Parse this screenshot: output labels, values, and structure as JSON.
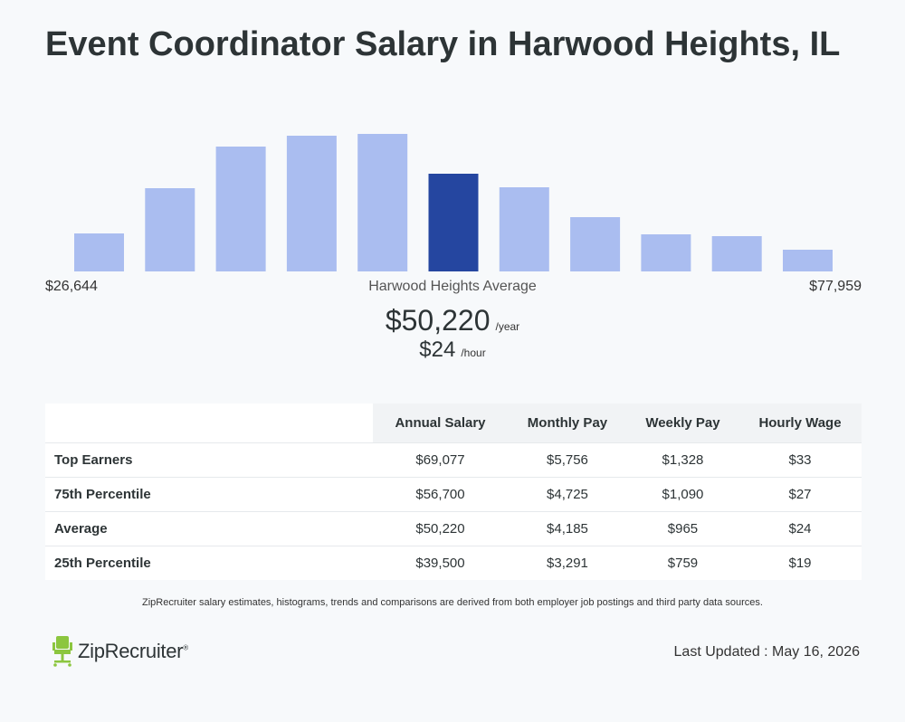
{
  "page": {
    "title": "Event Coordinator Salary in Harwood Heights, IL"
  },
  "chart_data": {
    "type": "bar",
    "title": "",
    "xlabel": "",
    "ylabel": "",
    "values": [
      42,
      92,
      138,
      150,
      152,
      108,
      93,
      60,
      41,
      39,
      24
    ],
    "highlight_index": 5,
    "colors": {
      "bar": "#aabdf0",
      "highlight": "#2546a0"
    },
    "min_label": "$26,644",
    "max_label": "$77,959",
    "grid": false,
    "legend": "none"
  },
  "average": {
    "caption": "Harwood Heights Average",
    "annual": "$50,220",
    "annual_unit": "/year",
    "hourly": "$24",
    "hourly_unit": "/hour"
  },
  "table": {
    "headers": [
      "",
      "Annual Salary",
      "Monthly Pay",
      "Weekly Pay",
      "Hourly Wage"
    ],
    "rows": [
      {
        "label": "Top Earners",
        "annual": "$69,077",
        "monthly": "$5,756",
        "weekly": "$1,328",
        "hourly": "$33"
      },
      {
        "label": "75th Percentile",
        "annual": "$56,700",
        "monthly": "$4,725",
        "weekly": "$1,090",
        "hourly": "$27"
      },
      {
        "label": "Average",
        "annual": "$50,220",
        "monthly": "$4,185",
        "weekly": "$965",
        "hourly": "$24"
      },
      {
        "label": "25th Percentile",
        "annual": "$39,500",
        "monthly": "$3,291",
        "weekly": "$759",
        "hourly": "$19"
      }
    ]
  },
  "footer": {
    "disclaimer": "ZipRecruiter salary estimates, histograms, trends and comparisons are derived from both employer job postings and third party data sources.",
    "logo_text": "ZipRecruiter",
    "logo_mark": "®",
    "logo_icon": "chair-icon",
    "logo_color": "#8cc63f",
    "last_updated": "Last Updated : May 16, 2026"
  }
}
